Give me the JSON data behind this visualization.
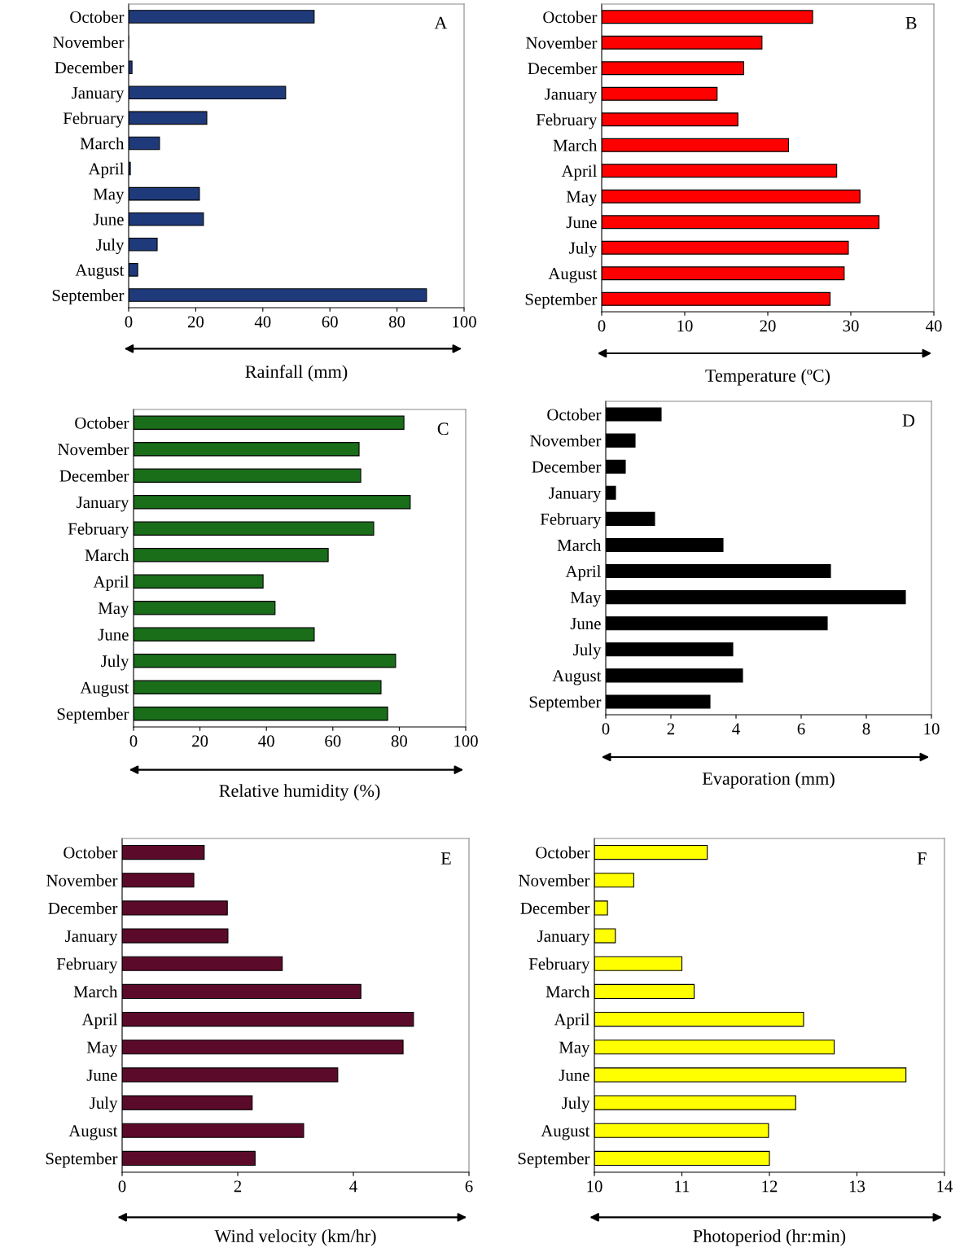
{
  "chart_data": [
    {
      "type": "bar",
      "orientation": "horizontal",
      "categories": [
        "October",
        "November",
        "December",
        "January",
        "February",
        "March",
        "April",
        "May",
        "June",
        "July",
        "August",
        "September"
      ],
      "values": [
        55.3,
        0,
        1,
        46.8,
        23.3,
        9.2,
        0.5,
        21.1,
        22.3,
        8.5,
        2.7,
        88.8
      ],
      "color": "#1f3a7a",
      "xlim": [
        0,
        100
      ],
      "xticks": [
        0,
        20,
        40,
        60,
        80,
        100
      ],
      "xlabel": "Rainfall (mm)",
      "annotations": [
        "A"
      ],
      "grid": false
    },
    {
      "type": "bar",
      "orientation": "horizontal",
      "categories": [
        "October",
        "November",
        "December",
        "January",
        "February",
        "March",
        "April",
        "May",
        "June",
        "July",
        "August",
        "September"
      ],
      "values": [
        25.4,
        19.3,
        17.1,
        13.9,
        16.4,
        22.5,
        28.3,
        31.1,
        33.4,
        29.7,
        29.2,
        27.5
      ],
      "color": "#ff0000",
      "xlim": [
        0,
        40
      ],
      "xticks": [
        0,
        10,
        20,
        30,
        40
      ],
      "xlabel": "Temperature (ºC)",
      "annotations": [
        "B"
      ],
      "grid": false
    },
    {
      "type": "bar",
      "orientation": "horizontal",
      "categories": [
        "October",
        "November",
        "December",
        "January",
        "February",
        "March",
        "April",
        "May",
        "June",
        "July",
        "August",
        "September"
      ],
      "values": [
        81.4,
        67.9,
        68.4,
        83.3,
        72.3,
        58.6,
        39,
        42.6,
        54.4,
        78.9,
        74.5,
        76.5
      ],
      "color": "#1a6e1a",
      "xlim": [
        0,
        100
      ],
      "xticks": [
        0,
        20,
        40,
        60,
        80,
        100
      ],
      "xlabel": "Relative humidity (%)",
      "annotations": [
        "C"
      ],
      "grid": false
    },
    {
      "type": "bar",
      "orientation": "horizontal",
      "categories": [
        "October",
        "November",
        "December",
        "January",
        "February",
        "March",
        "April",
        "May",
        "June",
        "July",
        "August",
        "September"
      ],
      "values": [
        1.7,
        0.9,
        0.6,
        0.3,
        1.5,
        3.6,
        6.9,
        9.2,
        6.8,
        3.9,
        4.2,
        3.2
      ],
      "color": "#000000",
      "xlim": [
        0,
        10
      ],
      "xticks": [
        0,
        2,
        4,
        6,
        8,
        10
      ],
      "xlabel": "Evaporation (mm)",
      "annotations": [
        "D"
      ],
      "grid": false
    },
    {
      "type": "bar",
      "orientation": "horizontal",
      "categories": [
        "October",
        "November",
        "December",
        "January",
        "February",
        "March",
        "April",
        "May",
        "June",
        "July",
        "August",
        "September"
      ],
      "values": [
        1.42,
        1.24,
        1.82,
        1.83,
        2.77,
        4.13,
        5.04,
        4.86,
        3.73,
        2.25,
        3.14,
        2.3
      ],
      "color": "#5c0a2a",
      "xlim": [
        0,
        6
      ],
      "xticks": [
        0,
        2,
        4,
        6
      ],
      "xlabel": "Wind velocity (km/hr)",
      "annotations": [
        "E"
      ],
      "grid": false
    },
    {
      "type": "bar",
      "orientation": "horizontal",
      "categories": [
        "October",
        "November",
        "December",
        "January",
        "February",
        "March",
        "April",
        "May",
        "June",
        "July",
        "August",
        "September"
      ],
      "values": [
        11.29,
        10.45,
        10.15,
        10.24,
        11.0,
        11.14,
        12.39,
        12.74,
        13.56,
        12.3,
        11.99,
        12.0
      ],
      "color": "#ffff00",
      "xlim": [
        10,
        14
      ],
      "xticks": [
        10,
        11,
        12,
        13,
        14
      ],
      "xlabel": "Photoperiod (hr:min)",
      "annotations": [
        "F"
      ],
      "grid": false
    }
  ]
}
